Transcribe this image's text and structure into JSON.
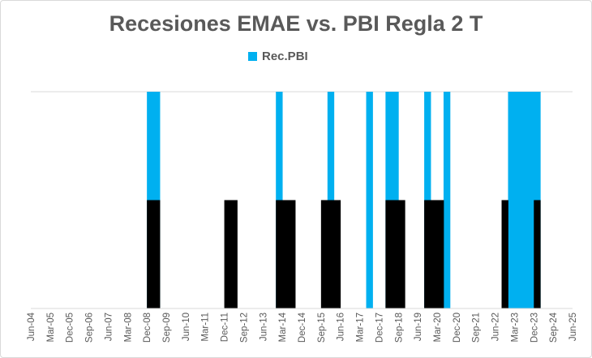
{
  "chart_data": {
    "type": "bar",
    "title": "Recesiones EMAE vs. PBI Regla 2 T",
    "xlabel": "",
    "ylabel": "",
    "ylim": [
      0,
      1
    ],
    "y_axis_visible": false,
    "grid": "top gridline only",
    "legend": {
      "placement": "top",
      "entries": [
        "Rec.PBI"
      ]
    },
    "frequency": "quarterly",
    "x_range": [
      "Jun-04",
      "Jun-25"
    ],
    "tick_labels": [
      "Jun-04",
      "Mar-05",
      "Dec-05",
      "Sep-06",
      "Jun-07",
      "Mar-08",
      "Dec-08",
      "Sep-09",
      "Jun-10",
      "Mar-11",
      "Dec-11",
      "Sep-12",
      "Jun-13",
      "Mar-14",
      "Dec-14",
      "Sep-15",
      "Jun-16",
      "Mar-17",
      "Dec-17",
      "Sep-18",
      "Jun-19",
      "Mar-20",
      "Dec-20",
      "Sep-21",
      "Jun-22",
      "Mar-23",
      "Dec-23",
      "Sep-24",
      "Jun-25"
    ],
    "series": [
      {
        "name": "Rec.PBI",
        "color": "#00b0f0",
        "value": 1,
        "dates": [
          "Mar-09",
          "Jun-09",
          "Mar-14",
          "Mar-16",
          "Sep-17",
          "Jun-18",
          "Sep-18",
          "Dec-19",
          "Sep-20",
          "Mar-23",
          "Jun-23",
          "Sep-23",
          "Dec-23",
          "Mar-24"
        ]
      },
      {
        "color": "#000000",
        "value": 0.5,
        "dates": [
          "Mar-09",
          "Jun-09",
          "Mar-12",
          "Jun-12",
          "Mar-14",
          "Jun-14",
          "Sep-14",
          "Dec-15",
          "Mar-16",
          "Jun-16",
          "Jun-18",
          "Sep-18",
          "Dec-18",
          "Dec-19",
          "Mar-20",
          "Jun-20",
          "Dec-22",
          "Mar-24"
        ]
      }
    ]
  }
}
